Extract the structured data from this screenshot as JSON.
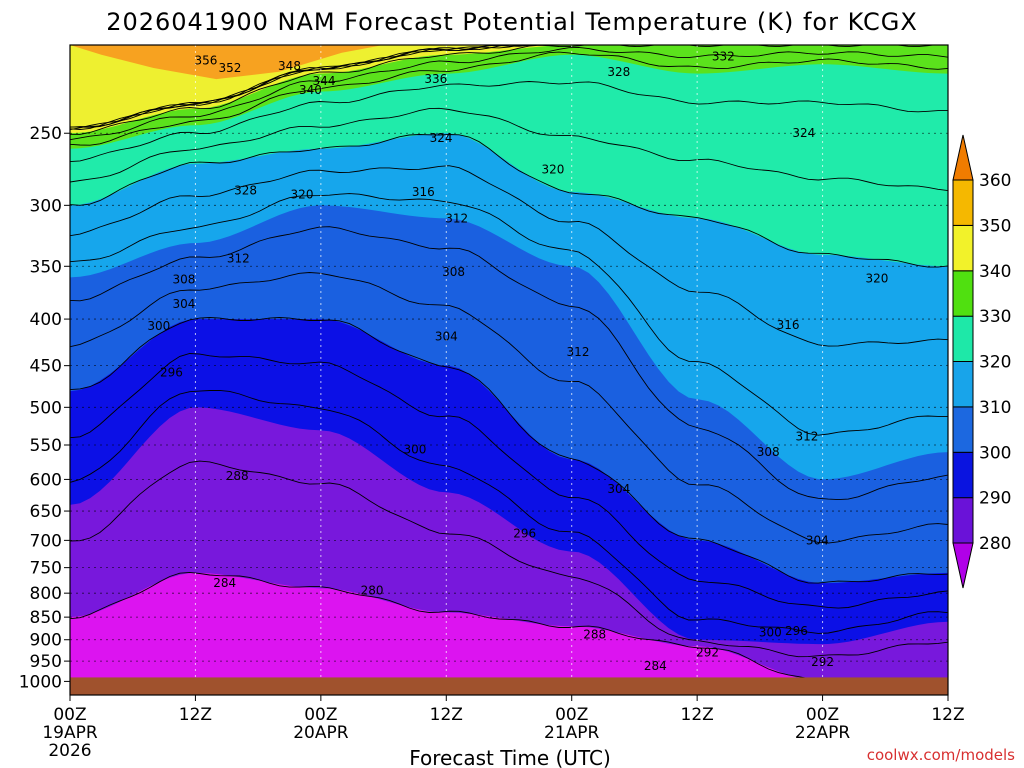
{
  "chart_data": {
    "type": "heatmap",
    "title": "2026041900 NAM Forecast Potential Temperature (K) for KCGX",
    "xlabel": "Forecast Time (UTC)",
    "ylabel": "",
    "credit": "coolwx.com/models",
    "y_scale": "log-pressure",
    "ylim_hpa": [
      1035,
      200
    ],
    "xlim_hours": [
      0,
      84
    ],
    "x_ticks": [
      {
        "hour": 0,
        "label": "00Z",
        "sub1": "19APR",
        "sub2": "2026"
      },
      {
        "hour": 12,
        "label": "12Z",
        "sub1": "",
        "sub2": ""
      },
      {
        "hour": 24,
        "label": "00Z",
        "sub1": "20APR",
        "sub2": ""
      },
      {
        "hour": 36,
        "label": "12Z",
        "sub1": "",
        "sub2": ""
      },
      {
        "hour": 48,
        "label": "00Z",
        "sub1": "21APR",
        "sub2": ""
      },
      {
        "hour": 60,
        "label": "12Z",
        "sub1": "",
        "sub2": ""
      },
      {
        "hour": 72,
        "label": "00Z",
        "sub1": "22APR",
        "sub2": ""
      },
      {
        "hour": 84,
        "label": "12Z",
        "sub1": "",
        "sub2": ""
      }
    ],
    "y_ticks": [
      "250",
      "300",
      "350",
      "400",
      "450",
      "500",
      "550",
      "600",
      "650",
      "700",
      "750",
      "800",
      "850",
      "900",
      "950",
      "1000"
    ],
    "y_tick_values": [
      250,
      300,
      350,
      400,
      450,
      500,
      550,
      600,
      650,
      700,
      750,
      800,
      850,
      900,
      950,
      1000
    ],
    "surface_hpa": 990,
    "colorbar": {
      "levels": [
        280,
        290,
        300,
        310,
        320,
        330,
        340,
        350,
        360
      ],
      "labels": [
        "280",
        "290",
        "300",
        "310",
        "320",
        "330",
        "340",
        "350",
        "360"
      ],
      "colors": [
        "#b000e8",
        "#6a12d8",
        "#0a14e0",
        "#1c68e0",
        "#18a4ea",
        "#1ee8a8",
        "#50e010",
        "#f2f22a",
        "#f5b800",
        "#f07c00"
      ]
    },
    "fill_colors": {
      "below_280": "#dc14f0",
      "280_290": "#7818dc",
      "290_300": "#0c10e6",
      "300_310": "#1a60e0",
      "310_320": "#16a6ec",
      "320_330": "#20ebaa",
      "330_340": "#5be21c",
      "340_350": "#eef030",
      "350_plus": "#f7a220",
      "ground": "#a0522d"
    },
    "profiles": {
      "hours": [
        0,
        12,
        24,
        36,
        48,
        60,
        72,
        84
      ],
      "p_284": [
        850,
        760,
        790,
        840,
        870,
        915,
        1000,
        1000
      ],
      "p_290": [
        640,
        500,
        530,
        620,
        720,
        900,
        910,
        860
      ],
      "p_300": [
        480,
        400,
        400,
        450,
        570,
        700,
        780,
        760
      ],
      "p_310": [
        360,
        330,
        300,
        310,
        350,
        490,
        600,
        560
      ],
      "p_320": [
        300,
        270,
        260,
        250,
        290,
        310,
        340,
        350
      ],
      "p_330": [
        260,
        245,
        225,
        215,
        205,
        215,
        210,
        215
      ],
      "p_340": [
        250,
        235,
        215,
        205,
        200,
        200,
        200,
        200
      ]
    },
    "contour_labels": [
      {
        "text": "356",
        "hour": 13.0,
        "p": 208
      },
      {
        "text": "352",
        "hour": 15.3,
        "p": 212
      },
      {
        "text": "348",
        "hour": 21.0,
        "p": 211
      },
      {
        "text": "344",
        "hour": 24.3,
        "p": 219
      },
      {
        "text": "340",
        "hour": 23.0,
        "p": 224
      },
      {
        "text": "336",
        "hour": 35.0,
        "p": 218
      },
      {
        "text": "332",
        "hour": 62.5,
        "p": 206
      },
      {
        "text": "328",
        "hour": 52.5,
        "p": 214
      },
      {
        "text": "324",
        "hour": 35.5,
        "p": 253
      },
      {
        "text": "324",
        "hour": 70.2,
        "p": 250
      },
      {
        "text": "320",
        "hour": 46.2,
        "p": 274
      },
      {
        "text": "328",
        "hour": 16.8,
        "p": 289
      },
      {
        "text": "320",
        "hour": 22.2,
        "p": 292
      },
      {
        "text": "316",
        "hour": 33.8,
        "p": 290
      },
      {
        "text": "312",
        "hour": 37.0,
        "p": 310
      },
      {
        "text": "312",
        "hour": 16.1,
        "p": 343
      },
      {
        "text": "308",
        "hour": 10.9,
        "p": 362
      },
      {
        "text": "308",
        "hour": 36.7,
        "p": 355
      },
      {
        "text": "304",
        "hour": 10.9,
        "p": 385
      },
      {
        "text": "320",
        "hour": 77.2,
        "p": 361
      },
      {
        "text": "316",
        "hour": 68.7,
        "p": 406
      },
      {
        "text": "300",
        "hour": 8.5,
        "p": 407
      },
      {
        "text": "304",
        "hour": 36.0,
        "p": 418
      },
      {
        "text": "312",
        "hour": 48.6,
        "p": 435
      },
      {
        "text": "296",
        "hour": 9.7,
        "p": 458
      },
      {
        "text": "312",
        "hour": 70.5,
        "p": 538
      },
      {
        "text": "300",
        "hour": 33.0,
        "p": 556
      },
      {
        "text": "308",
        "hour": 66.8,
        "p": 560
      },
      {
        "text": "304",
        "hour": 52.5,
        "p": 615
      },
      {
        "text": "288",
        "hour": 16.0,
        "p": 595
      },
      {
        "text": "296",
        "hour": 43.5,
        "p": 688
      },
      {
        "text": "304",
        "hour": 71.5,
        "p": 700
      },
      {
        "text": "284",
        "hour": 14.8,
        "p": 780
      },
      {
        "text": "280",
        "hour": 28.9,
        "p": 795
      },
      {
        "text": "288",
        "hour": 50.2,
        "p": 888
      },
      {
        "text": "300",
        "hour": 67.0,
        "p": 884
      },
      {
        "text": "296",
        "hour": 69.5,
        "p": 880
      },
      {
        "text": "292",
        "hour": 61.0,
        "p": 930
      },
      {
        "text": "284",
        "hour": 56.0,
        "p": 962
      },
      {
        "text": "292",
        "hour": 72.0,
        "p": 952
      }
    ]
  }
}
